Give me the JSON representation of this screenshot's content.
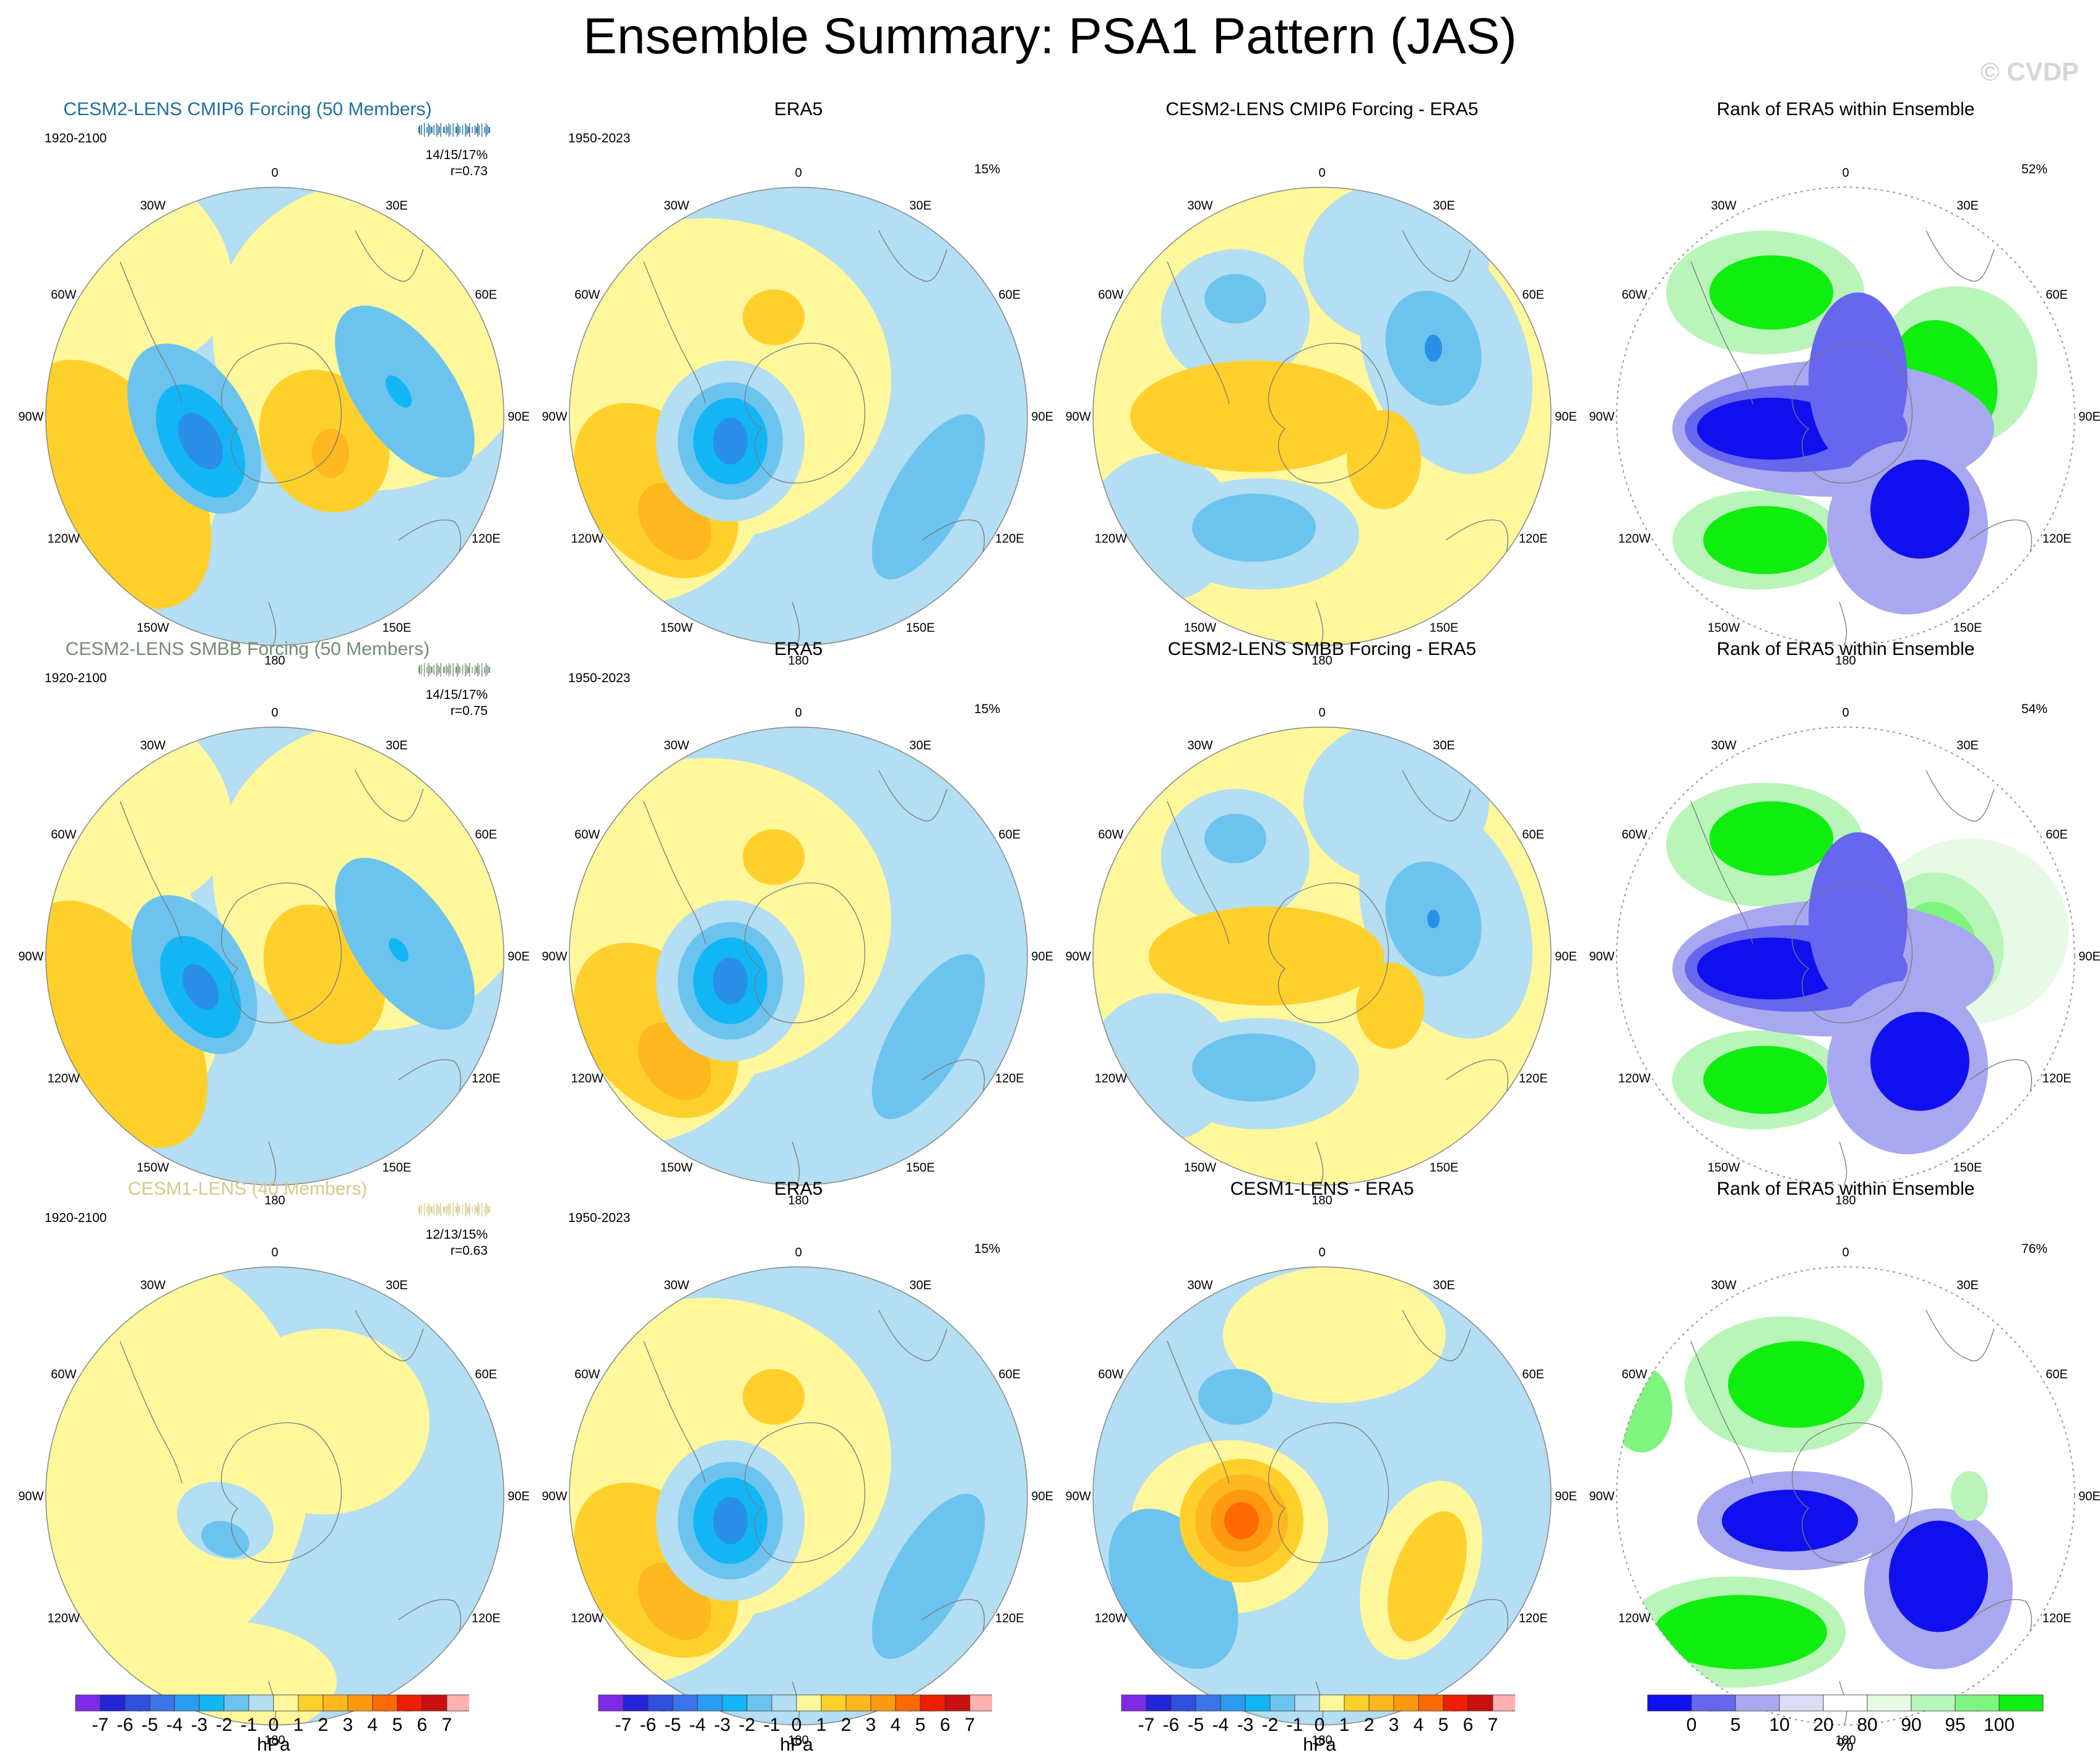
{
  "title": "Ensemble Summary: PSA1 Pattern (JAS)",
  "watermark": "© CVDP",
  "lon_labels": [
    "0",
    "30E",
    "60E",
    "90E",
    "120E",
    "150E",
    "180",
    "150W",
    "120W",
    "90W",
    "60W",
    "30W"
  ],
  "rows": [
    {
      "model_title": "CESM2-LENS CMIP6 Forcing (50 Members)",
      "model_title_color": "#1f6f9d",
      "model_period": "1920-2100",
      "model_stats": "14/15/17%",
      "model_r": "r=0.73",
      "era_title": "ERA5",
      "era_period": "1950-2023",
      "era_pct": "15%",
      "diff_title": "CESM2-LENS CMIP6 Forcing - ERA5",
      "rank_title": "Rank of ERA5 within Ensemble",
      "rank_pct": "52%"
    },
    {
      "model_title": "CESM2-LENS SMBB Forcing (50 Members)",
      "model_title_color": "#6f8f70",
      "model_period": "1920-2100",
      "model_stats": "14/15/17%",
      "model_r": "r=0.75",
      "era_title": "ERA5",
      "era_period": "1950-2023",
      "era_pct": "15%",
      "diff_title": "CESM2-LENS SMBB Forcing - ERA5",
      "rank_title": "Rank of ERA5 within Ensemble",
      "rank_pct": "54%"
    },
    {
      "model_title": "CESM1-LENS (40 Members)",
      "model_title_color": "#d7c98a",
      "model_period": "1920-2100",
      "model_stats": "12/13/15%",
      "model_r": "r=0.63",
      "era_title": "ERA5",
      "era_period": "1950-2023",
      "era_pct": "15%",
      "diff_title": "CESM1-LENS - ERA5",
      "rank_title": "Rank of ERA5 within Ensemble",
      "rank_pct": "76%"
    }
  ],
  "colorbar_hpa": {
    "labels": [
      "-7",
      "-6",
      "-5",
      "-4",
      "-3",
      "-2",
      "-1",
      "0",
      "1",
      "2",
      "3",
      "4",
      "5",
      "6",
      "7"
    ],
    "units": "hPa",
    "colors": [
      "#7d2ae8",
      "#2424d8",
      "#2f4fdc",
      "#3a74e8",
      "#2a9cf0",
      "#13b6f5",
      "#6cc4ee",
      "#b3def3",
      "#fff79c",
      "#ffd02c",
      "#ffb81f",
      "#ff9a10",
      "#ff6a00",
      "#ee1e00",
      "#c81010",
      "#ffb0b0"
    ]
  },
  "colorbar_rank": {
    "labels": [
      "0",
      "5",
      "10",
      "20",
      "80",
      "90",
      "95",
      "100"
    ],
    "units": "%",
    "colors": [
      "#1010ee",
      "#6666ee",
      "#a8a8f0",
      "#dcdcf6",
      "#ffffff",
      "#e6fae6",
      "#b9f5b9",
      "#7ff57f",
      "#10ee10"
    ]
  }
}
